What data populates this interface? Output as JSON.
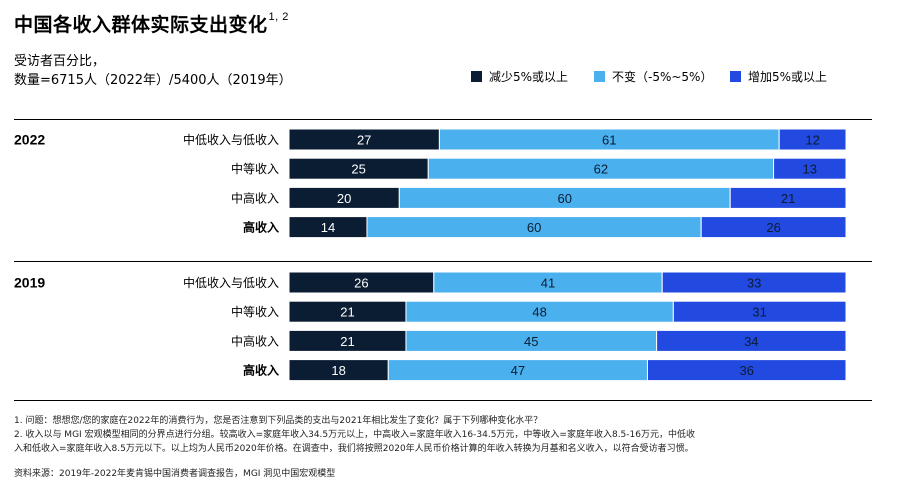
{
  "title": "中国各收入群体实际支出变化",
  "title_sup": "1, 2",
  "subtitle_line1": "受访者百分比，",
  "subtitle_line2": "数量=6715人（2022年）/5400人（2019年）",
  "legend": [
    {
      "label": "减少5%或以上",
      "color": "#0b1d33"
    },
    {
      "label": "不变（-5%~5%）",
      "color": "#4ab0ee"
    },
    {
      "label": "增加5%或以上",
      "color": "#2249e0"
    }
  ],
  "chart_data": {
    "type": "bar",
    "orientation": "horizontal-stacked-100",
    "title": "中国各收入群体实际支出变化",
    "series_names": [
      "减少5%或以上",
      "不变（-5%~5%）",
      "增加5%或以上"
    ],
    "series_colors": [
      "#0b1d33",
      "#4ab0ee",
      "#2249e0"
    ],
    "groups": [
      {
        "year": "2022",
        "rows": [
          {
            "label": "中低收入与低收入",
            "bold": false,
            "values": [
              27,
              61,
              12
            ]
          },
          {
            "label": "中等收入",
            "bold": false,
            "values": [
              25,
              62,
              13
            ]
          },
          {
            "label": "中高收入",
            "bold": false,
            "values": [
              20,
              60,
              21
            ]
          },
          {
            "label": "高收入",
            "bold": true,
            "values": [
              14,
              60,
              26
            ]
          }
        ]
      },
      {
        "year": "2019",
        "rows": [
          {
            "label": "中低收入与低收入",
            "bold": false,
            "values": [
              26,
              41,
              33
            ]
          },
          {
            "label": "中等收入",
            "bold": false,
            "values": [
              21,
              48,
              31
            ]
          },
          {
            "label": "中高收入",
            "bold": false,
            "values": [
              21,
              45,
              34
            ]
          },
          {
            "label": "高收入",
            "bold": true,
            "values": [
              18,
              47,
              36
            ]
          }
        ]
      }
    ]
  },
  "footnotes": [
    "1. 问题：想想您/您的家庭在2022年的消费行为，您是否注意到下列品类的支出与2021年相比发生了变化？属于下列哪种变化水平？",
    "2. 收入以与 MGI 宏观模型相同的分界点进行分组。较高收入=家庭年收入34.5万元以上，中高收入=家庭年收入16-34.5万元，中等收入=家庭年收入8.5-16万元，中低收",
    "入和低收入=家庭年收入8.5万元以下。以上均为人民币2020年价格。在调查中，我们将按照2020年人民币价格计算的年收入转换为月基和名义收入，以符合受访者习惯。",
    "资料来源：2019年-2022年麦肯锡中国消费者调查报告，MGI 洞见中国宏观模型"
  ]
}
